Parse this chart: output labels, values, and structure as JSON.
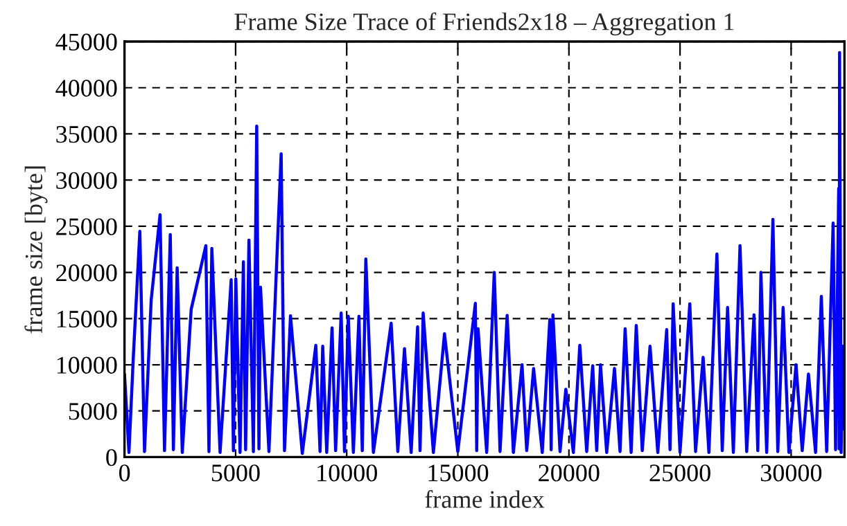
{
  "chart_data": {
    "type": "line",
    "title": "Frame Size Trace of Friends2x18 – Aggregation 1",
    "xlabel": "frame index",
    "ylabel": "frame size [byte]",
    "xlim": [
      0,
      32400
    ],
    "ylim": [
      0,
      45000
    ],
    "xticks": [
      0,
      5000,
      10000,
      15000,
      20000,
      25000,
      30000
    ],
    "yticks": [
      0,
      5000,
      10000,
      15000,
      20000,
      25000,
      30000,
      35000,
      40000,
      45000
    ],
    "grid": true,
    "marker": "none",
    "line_style": "solid",
    "series": [
      {
        "color": "#0000ff",
        "x": [
          0,
          200,
          400,
          690,
          900,
          1200,
          1600,
          1800,
          2060,
          2200,
          2370,
          2600,
          3000,
          3660,
          3800,
          3930,
          4300,
          4800,
          4900,
          5010,
          5200,
          5350,
          5450,
          5600,
          5800,
          5950,
          6050,
          6120,
          6500,
          7050,
          7200,
          7470,
          8000,
          8610,
          8800,
          8920,
          9100,
          9340,
          9500,
          9750,
          9900,
          10070,
          10300,
          10550,
          10700,
          10860,
          11200,
          12000,
          12300,
          12600,
          12900,
          13190,
          13300,
          13440,
          13900,
          14400,
          15000,
          15790,
          15850,
          15910,
          16300,
          16640,
          16900,
          17220,
          17500,
          17890,
          18100,
          18410,
          18800,
          19140,
          19200,
          19280,
          19600,
          19860,
          20200,
          20490,
          20800,
          21070,
          21250,
          21420,
          21700,
          22050,
          22300,
          22530,
          22800,
          23030,
          23300,
          23650,
          24000,
          24400,
          24550,
          24690,
          25000,
          25440,
          25700,
          26040,
          26300,
          26660,
          26900,
          27140,
          27400,
          27700,
          28000,
          28330,
          28500,
          28640,
          28900,
          29180,
          29400,
          29640,
          29900,
          30220,
          30500,
          30780,
          31100,
          31360,
          31600,
          31890,
          32000,
          32140,
          32160,
          32180,
          32250,
          32320,
          32400
        ],
        "values": [
          9000,
          500,
          11000,
          24450,
          600,
          17000,
          26250,
          700,
          24100,
          800,
          20500,
          500,
          16000,
          22900,
          600,
          22600,
          500,
          19200,
          700,
          19300,
          500,
          21150,
          800,
          23500,
          600,
          35850,
          900,
          18400,
          600,
          32850,
          700,
          15300,
          400,
          12100,
          600,
          12000,
          500,
          14000,
          700,
          15600,
          600,
          15250,
          500,
          15250,
          700,
          21450,
          500,
          14500,
          600,
          11750,
          500,
          14100,
          700,
          15600,
          500,
          13350,
          600,
          16650,
          700,
          13900,
          500,
          20000,
          600,
          15350,
          500,
          10000,
          700,
          9600,
          500,
          14900,
          800,
          15400,
          600,
          7350,
          500,
          12100,
          600,
          9900,
          700,
          10000,
          500,
          9600,
          600,
          13900,
          500,
          14250,
          700,
          12000,
          500,
          13800,
          800,
          16600,
          500,
          16600,
          600,
          10800,
          500,
          22000,
          700,
          16200,
          500,
          22900,
          600,
          15400,
          700,
          20000,
          500,
          25750,
          600,
          16200,
          500,
          10000,
          700,
          9000,
          500,
          17400,
          600,
          25350,
          800,
          29100,
          900,
          43800,
          500,
          12000,
          3000
        ]
      }
    ]
  }
}
